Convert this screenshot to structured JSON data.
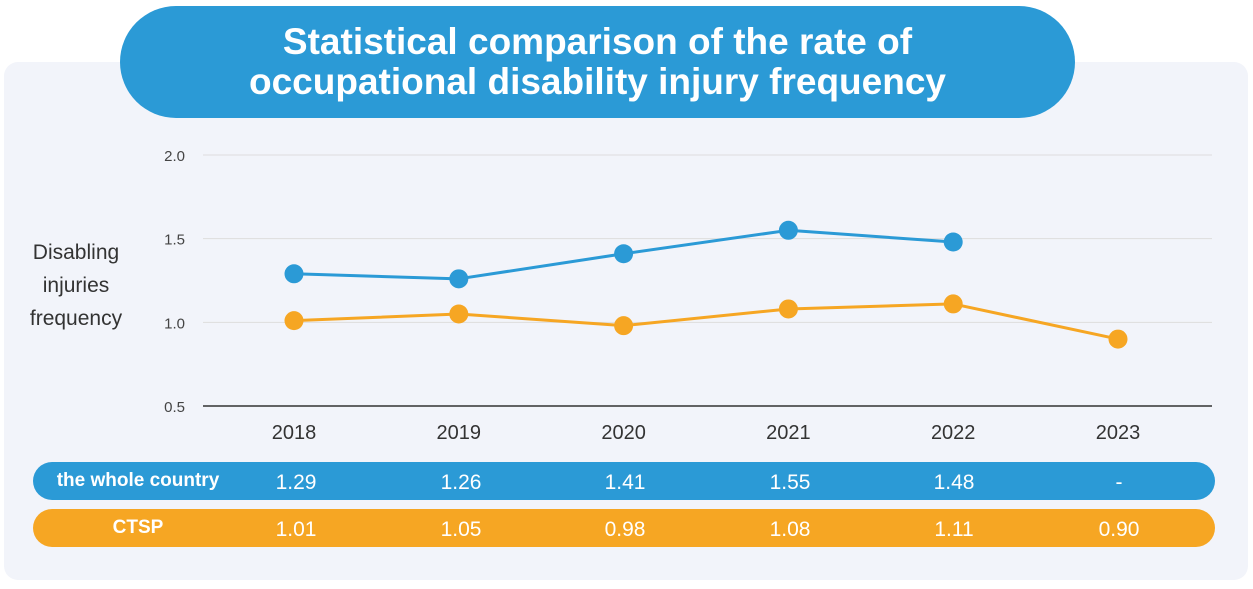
{
  "title": "Statistical comparison of the rate of occupational disability injury frequency",
  "y_axis_label": "Disabling injuries frequency",
  "table": {
    "rows": [
      {
        "label": "the whole country",
        "values": [
          "1.29",
          "1.26",
          "1.41",
          "1.55",
          "1.48",
          "-"
        ]
      },
      {
        "label": "CTSP",
        "values": [
          "1.01",
          "1.05",
          "0.98",
          "1.08",
          "1.11",
          "0.90"
        ]
      }
    ]
  },
  "colors": {
    "whole_country": "#2b9ad6",
    "ctsp": "#f6a623",
    "panel": "#f2f4fa"
  },
  "chart_data": {
    "type": "line",
    "categories": [
      "2018",
      "2019",
      "2020",
      "2021",
      "2022",
      "2023"
    ],
    "series": [
      {
        "name": "the whole country",
        "values": [
          1.29,
          1.26,
          1.41,
          1.55,
          1.48,
          null
        ]
      },
      {
        "name": "CTSP",
        "values": [
          1.01,
          1.05,
          0.98,
          1.08,
          1.11,
          0.9
        ]
      }
    ],
    "ylabel": "Disabling injuries frequency",
    "yticks": [
      "2.0",
      "1.5",
      "1.0",
      "0.5"
    ],
    "ylim": [
      0.5,
      2.0
    ],
    "grid": true
  }
}
